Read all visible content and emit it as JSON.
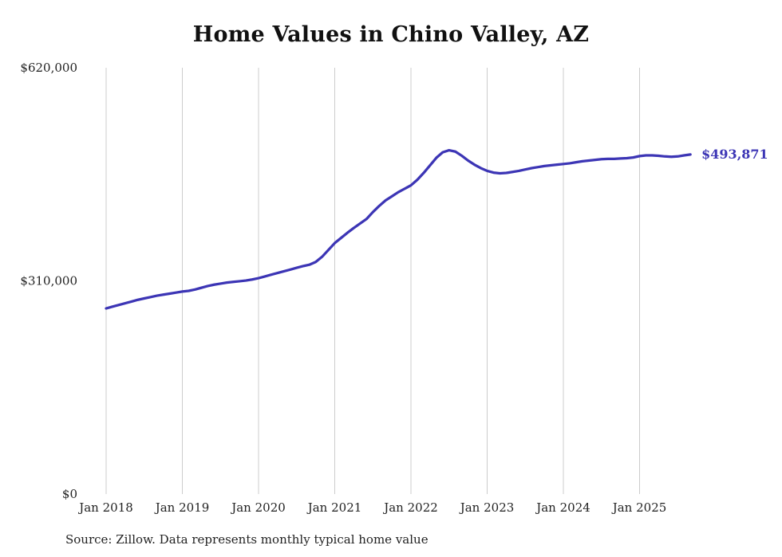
{
  "page": {
    "title": "Home Values in Chino Valley, AZ",
    "source_note": "Source: Zillow. Data represents monthly typical home value"
  },
  "chart_data": {
    "type": "line",
    "title": "Home Values in Chino Valley, AZ",
    "series_name": "Monthly typical home value",
    "x_start": "Jan 2018",
    "x_end": "Sep 2025",
    "x_tick_labels": [
      "Jan 2018",
      "Jan 2019",
      "Jan 2020",
      "Jan 2021",
      "Jan 2022",
      "Jan 2023",
      "Jan 2024",
      "Jan 2025"
    ],
    "y_ticks": [
      {
        "label": "$620,000",
        "value": 620000
      },
      {
        "label": "$310,000",
        "value": 310000
      },
      {
        "label": "$0",
        "value": 0
      }
    ],
    "ylim": [
      0,
      620000
    ],
    "grid": "vertical-only",
    "legend": "none",
    "end_label": "$493,871",
    "end_value": 493871,
    "line_color": "#3c35b5",
    "grid_color": "#cccccc",
    "values": [
      270000,
      272500,
      275000,
      277500,
      280000,
      282500,
      284500,
      286500,
      288500,
      290000,
      291500,
      293000,
      294500,
      295500,
      297500,
      300000,
      302500,
      304500,
      306000,
      307500,
      308500,
      309500,
      310500,
      312000,
      314000,
      316500,
      319000,
      321500,
      324000,
      326500,
      329000,
      331500,
      333500,
      337500,
      345000,
      355000,
      365000,
      372500,
      380000,
      387000,
      393500,
      400000,
      410000,
      419000,
      427000,
      433000,
      439000,
      444000,
      449000,
      457000,
      467000,
      478000,
      489000,
      497000,
      500000,
      498000,
      492000,
      485000,
      479000,
      474000,
      470000,
      467500,
      466500,
      467000,
      468500,
      470000,
      472000,
      474000,
      475500,
      477000,
      478000,
      479000,
      480000,
      481000,
      482500,
      484000,
      485000,
      486000,
      487000,
      487500,
      487500,
      488000,
      488500,
      489500,
      491500,
      492500,
      492500,
      492000,
      491000,
      490500,
      491000,
      492500,
      493871
    ]
  }
}
